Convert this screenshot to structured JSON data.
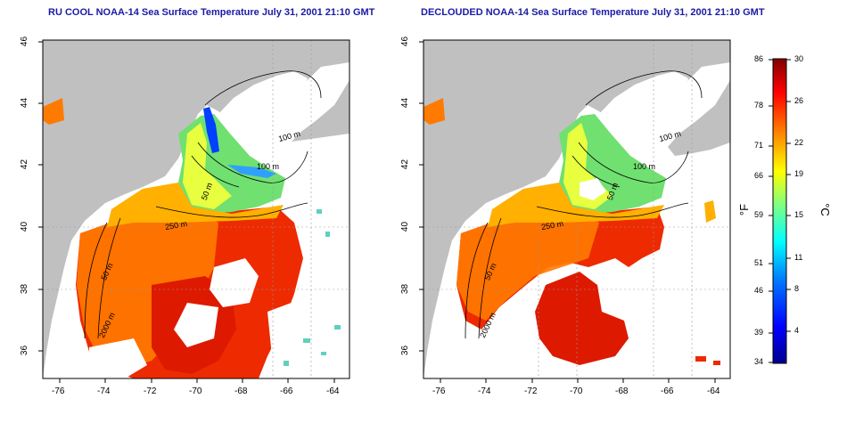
{
  "panels": [
    {
      "title": "RU COOL NOAA-14 Sea Surface Temperature July 31, 2001 21:10 GMT",
      "variant": "raw",
      "contour_labels": [
        "100 m",
        "100 m",
        "50 m",
        "250 m",
        "50 m",
        "2000 m"
      ]
    },
    {
      "title": "DECLOUDED NOAA-14 Sea Surface Temperature July 31, 2001 21:10 GMT",
      "variant": "declouded",
      "contour_labels": [
        "100 m",
        "100 m",
        "50 m",
        "250 m",
        "50 m",
        "2000 m"
      ]
    }
  ],
  "axes": {
    "lon_ticks": [
      "-76",
      "-74",
      "-72",
      "-70",
      "-68",
      "-66",
      "-64"
    ],
    "lat_ticks": [
      "46",
      "44",
      "42",
      "40",
      "38",
      "36"
    ]
  },
  "colorbar": {
    "fahrenheit_labels": [
      "86",
      "78",
      "71",
      "66",
      "59",
      "51",
      "46",
      "39",
      "34"
    ],
    "celsius_labels": [
      "30",
      "26",
      "22",
      "19",
      "15",
      "11",
      "8",
      "4"
    ],
    "unit_f": "°F",
    "unit_c": "°C",
    "colors": [
      "#00008f",
      "#0000ff",
      "#0080ff",
      "#00ffff",
      "#80ff80",
      "#ffff00",
      "#ff8000",
      "#ff0000",
      "#800000"
    ]
  },
  "colors": {
    "land": "#c0c0c0",
    "cloud": "#ffffff",
    "warm": "#ee2a00",
    "orange": "#ff7a00",
    "hot": "#dd1a00",
    "cool": "#70e070",
    "cold": "#0040ff",
    "contour": "#000000",
    "title": "#1a1aa6"
  }
}
